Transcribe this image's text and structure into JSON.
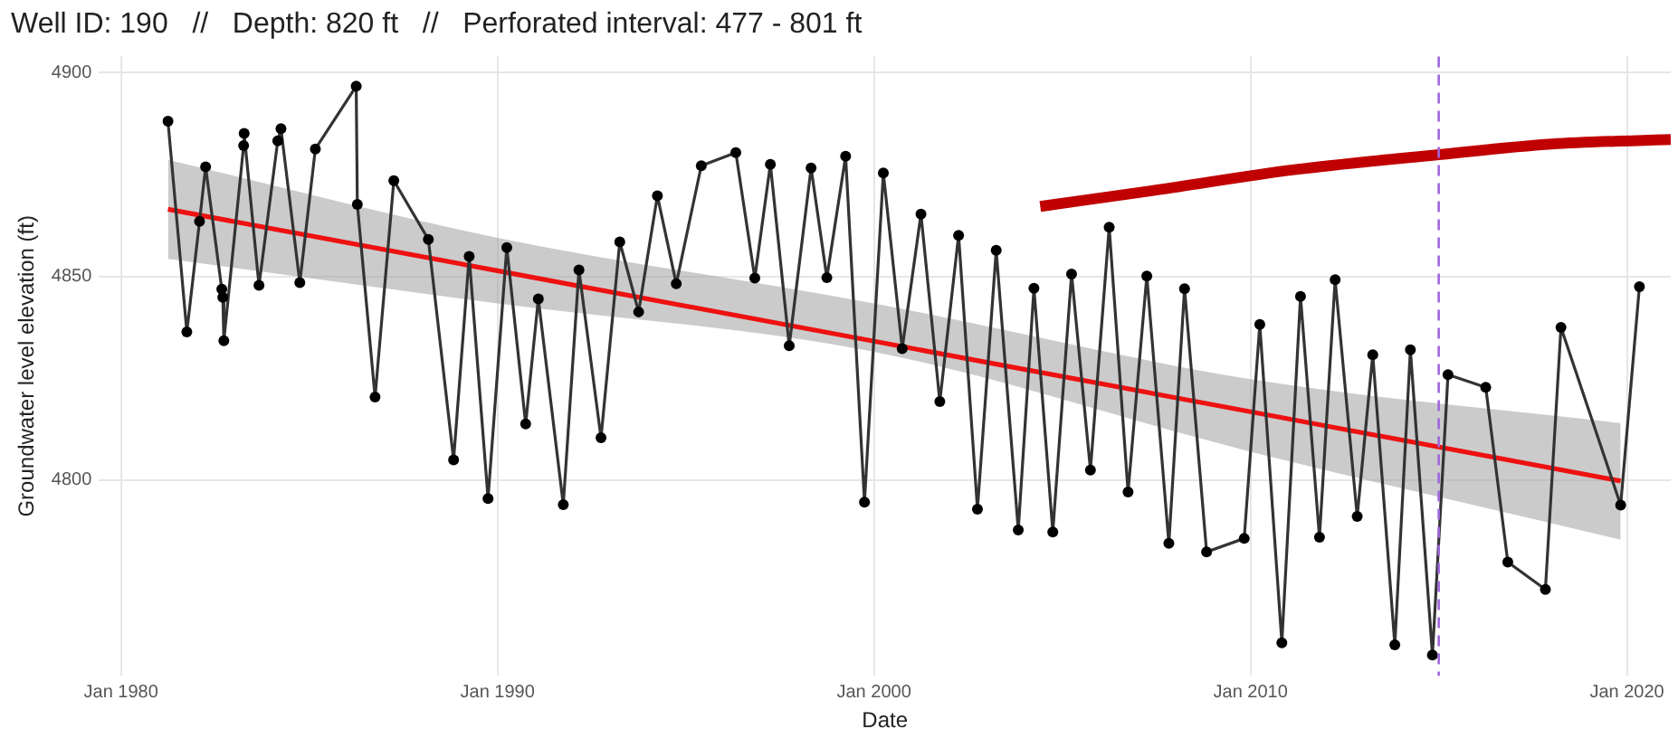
{
  "chart_data": {
    "type": "line",
    "title": "Well ID: 190   //   Depth: 820 ft   //   Perforated interval: 477 - 801 ft",
    "xlabel": "Date",
    "ylabel": "Groundwater level elevation (ft)",
    "xlim": [
      "1979-06",
      "2021-03"
    ],
    "xticks": [
      {
        "value": "1980-01",
        "label": "Jan 1980"
      },
      {
        "value": "1990-01",
        "label": "Jan 1990"
      },
      {
        "value": "2000-01",
        "label": "Jan 2000"
      },
      {
        "value": "2010-01",
        "label": "Jan 2010"
      },
      {
        "value": "2020-01",
        "label": "Jan 2020"
      }
    ],
    "ylim": [
      4752,
      4904
    ],
    "yticks": [
      4800,
      4850,
      4900
    ],
    "grid": true,
    "legend": false,
    "series": [
      {
        "color": "#333333",
        "marker": "circle",
        "line_style": "solid",
        "x": [
          "1981-04",
          "1981-10",
          "1982-02",
          "1982-04",
          "1982-09-05",
          "1982-09-15",
          "1982-09-25",
          "1983-04-05",
          "1983-04-10",
          "1983-09",
          "1984-03",
          "1984-04",
          "1984-10",
          "1985-03",
          "1986-04-01",
          "1986-04-12",
          "1986-10",
          "1987-04",
          "1988-03",
          "1988-11",
          "1989-04",
          "1989-10",
          "1990-04",
          "1990-10",
          "1991-02",
          "1991-10",
          "1992-03",
          "1992-10",
          "1993-04",
          "1993-10",
          "1994-04",
          "1994-10",
          "1995-06",
          "1996-05",
          "1996-11",
          "1997-04",
          "1997-10",
          "1998-05",
          "1998-10",
          "1999-04",
          "1999-10",
          "2000-04",
          "2000-10",
          "2001-04",
          "2001-10",
          "2002-04",
          "2002-10",
          "2003-04",
          "2003-11",
          "2004-04",
          "2004-10",
          "2005-04",
          "2005-10",
          "2006-04",
          "2006-10",
          "2007-04",
          "2007-11",
          "2008-04",
          "2008-11",
          "2009-11",
          "2010-04",
          "2010-11",
          "2011-05",
          "2011-11",
          "2012-04",
          "2012-11",
          "2013-04",
          "2013-11",
          "2014-04",
          "2014-11",
          "2015-04",
          "2016-04",
          "2016-11",
          "2017-11",
          "2018-04",
          "2019-11",
          "2020-05"
        ],
        "values": [
          4888.1,
          4836.4,
          4863.5,
          4876.9,
          4846.9,
          4844.9,
          4834.2,
          4882.1,
          4885.1,
          4847.8,
          4883.3,
          4886.3,
          4848.5,
          4881.3,
          4896.7,
          4867.7,
          4820.4,
          4873.5,
          4859.1,
          4805,
          4854.9,
          4795.5,
          4857.1,
          4813.8,
          4844.5,
          4794,
          4851.6,
          4810.4,
          4858.5,
          4841.3,
          4869.8,
          4848.2,
          4877.2,
          4880.4,
          4849.6,
          4877.5,
          4833,
          4876.6,
          4849.7,
          4879.5,
          4794.6,
          4875.4,
          4832.3,
          4865.3,
          4819.3,
          4860.1,
          4792.9,
          4856.4,
          4787.8,
          4847.1,
          4787.3,
          4850.6,
          4802.5,
          4862.1,
          4797.1,
          4850.1,
          4784.5,
          4847,
          4782.4,
          4785.7,
          4838.2,
          4760.1,
          4845.1,
          4786,
          4849.2,
          4791.1,
          4830.8,
          4759.6,
          4832,
          4757.1,
          4825.9,
          4822.8,
          4779.9,
          4773.2,
          4837.5,
          4793.9,
          4847.5
        ]
      },
      {
        "color": "#ee1111",
        "marker": "none",
        "line_style": "solid",
        "x": [
          "1981-04",
          "1990-01",
          "2000-01",
          "2010-01",
          "2019-11"
        ],
        "values": [
          4866.5,
          4851.4,
          4834.1,
          4816.8,
          4799.8
        ],
        "lower": [
          4854.3,
          4843.4,
          4831.5,
          4807,
          4785.4
        ],
        "upper": [
          4878.6,
          4859.5,
          4843.4,
          4824.8,
          4814
        ]
      },
      {
        "color": "#c00000",
        "marker": "none",
        "line_style": "solid",
        "x": [
          "2004-06",
          "2007-07",
          "2011-03",
          "2015-01",
          "2018-01",
          "2021-03"
        ],
        "values": [
          4867.2,
          4871.2,
          4876.2,
          4879.9,
          4882.5,
          4883.6
        ]
      }
    ],
    "ref_lines": [
      {
        "axis": "x",
        "value": "2015-01",
        "color": "#a066dd",
        "line_style": "dashed"
      }
    ]
  }
}
